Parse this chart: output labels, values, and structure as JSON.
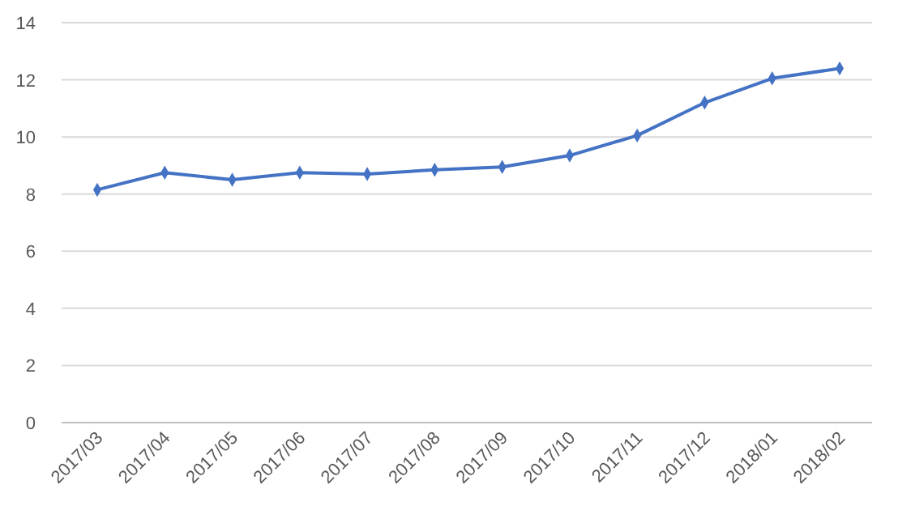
{
  "chart_data": {
    "type": "line",
    "categories": [
      "2017/03",
      "2017/04",
      "2017/05",
      "2017/06",
      "2017/07",
      "2017/08",
      "2017/09",
      "2017/10",
      "2017/11",
      "2017/12",
      "2018/01",
      "2018/02"
    ],
    "series": [
      {
        "color": "#4472c4",
        "values": [
          8.15,
          8.75,
          8.5,
          8.75,
          8.7,
          8.85,
          8.95,
          9.35,
          10.05,
          11.2,
          12.05,
          12.4
        ]
      }
    ],
    "ylim": [
      0,
      14
    ],
    "yticks": [
      0,
      2,
      4,
      6,
      8,
      10,
      12,
      14
    ],
    "grid": "y",
    "marker": "diamond",
    "line_style": "solid"
  }
}
